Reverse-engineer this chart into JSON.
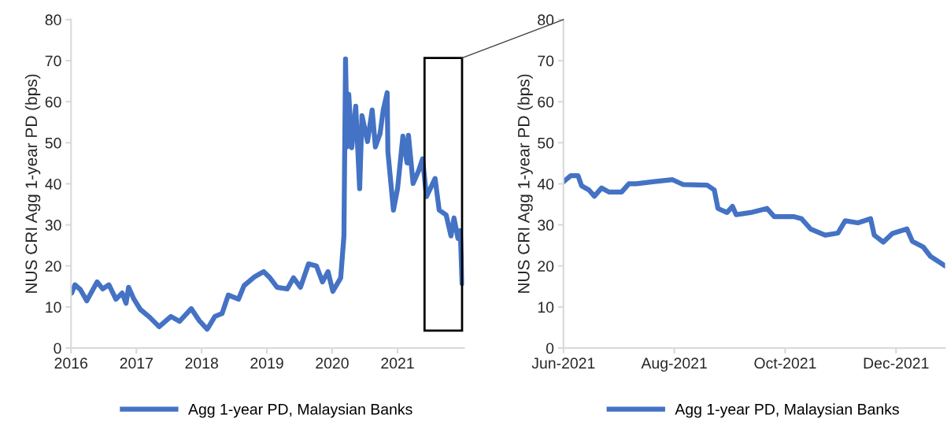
{
  "chart_data": [
    {
      "type": "line",
      "ylabel": "NUS CRI Agg 1-year PD (bps)",
      "xlim": [
        "2016-01-01",
        "2022-01-08"
      ],
      "ylim": [
        0,
        80
      ],
      "yticks": [
        0,
        10,
        20,
        30,
        40,
        50,
        60,
        70,
        80
      ],
      "xticks": [
        {
          "value": "2016-01-01",
          "label": "2016"
        },
        {
          "value": "2017-01-01",
          "label": "2017"
        },
        {
          "value": "2018-01-01",
          "label": "2018"
        },
        {
          "value": "2019-01-01",
          "label": "2019"
        },
        {
          "value": "2020-01-01",
          "label": "2020"
        },
        {
          "value": "2021-01-01",
          "label": "2021"
        }
      ],
      "grid": false,
      "legend": "bottom",
      "marker": "none",
      "line_style": "solid",
      "series": [
        {
          "name": "Agg 1-year PD, Malaysian Banks",
          "color": "#4472c4",
          "x": [
            "2016-01-05",
            "2016-01-23",
            "2016-02-23",
            "2016-03-29",
            "2016-05-26",
            "2016-06-26",
            "2016-07-31",
            "2016-09-08",
            "2016-10-13",
            "2016-11-04",
            "2016-11-18",
            "2016-12-18",
            "2017-01-23",
            "2017-03-16",
            "2017-05-08",
            "2017-07-13",
            "2017-08-30",
            "2017-11-04",
            "2017-12-18",
            "2018-02-01",
            "2018-03-16",
            "2018-04-25",
            "2018-05-30",
            "2018-07-26",
            "2018-08-26",
            "2018-10-22",
            "2018-12-14",
            "2019-01-18",
            "2019-02-27",
            "2019-04-25",
            "2019-05-30",
            "2019-07-08",
            "2019-08-22",
            "2019-10-05",
            "2019-11-08",
            "2019-12-09",
            "2020-01-05",
            "2020-02-18",
            "2020-03-07",
            "2020-03-16",
            "2020-03-25",
            "2020-04-03",
            "2020-04-20",
            "2020-05-12",
            "2020-06-03",
            "2020-06-16",
            "2020-07-17",
            "2020-08-12",
            "2020-08-30",
            "2020-09-25",
            "2020-10-13",
            "2020-11-04",
            "2020-11-08",
            "2020-12-09",
            "2021-01-01",
            "2021-01-31",
            "2021-02-23",
            "2021-03-03",
            "2021-03-29",
            "2021-04-29",
            "2021-05-21",
            "2021-06-12",
            "2021-07-30",
            "2021-08-22",
            "2021-09-30",
            "2021-10-27",
            "2021-11-13",
            "2021-12-05",
            "2021-12-18",
            "2021-12-28"
          ],
          "values": [
            13.4,
            15.4,
            14.2,
            11.5,
            16.1,
            14.4,
            15.4,
            11.9,
            13.4,
            10.9,
            14.8,
            11.9,
            9.4,
            7.5,
            5.2,
            7.7,
            6.5,
            9.6,
            6.7,
            4.6,
            7.7,
            8.4,
            12.9,
            11.9,
            15.2,
            17.3,
            18.6,
            17.1,
            14.8,
            14.4,
            17.1,
            14.8,
            20.5,
            20.0,
            16.1,
            18.6,
            13.8,
            17.1,
            27.3,
            70.4,
            49,
            61.8,
            48.8,
            58.9,
            38.8,
            56.6,
            50.3,
            58,
            49,
            52.2,
            58,
            62.2,
            47.8,
            33.6,
            38.8,
            51.6,
            45.1,
            51.8,
            40.1,
            43.2,
            46.1,
            36.9,
            41.3,
            33.6,
            32.4,
            27.3,
            31.7,
            26.7,
            28.6,
            15.7
          ]
        }
      ]
    },
    {
      "type": "line",
      "ylabel": "NUS CRI Agg 1-year PD (bps)",
      "xlim": [
        "2021-06-01",
        "2021-12-28"
      ],
      "ylim": [
        0,
        80
      ],
      "yticks": [
        0,
        10,
        20,
        30,
        40,
        50,
        60,
        70,
        80
      ],
      "xticks": [
        {
          "value": "2021-06-01",
          "label": "Jun-2021"
        },
        {
          "value": "2021-08-01",
          "label": "Aug-2021"
        },
        {
          "value": "2021-10-01",
          "label": "Oct-2021"
        },
        {
          "value": "2021-12-01",
          "label": "Dec-2021"
        }
      ],
      "grid": false,
      "legend": "bottom",
      "marker": "none",
      "line_style": "solid",
      "series": [
        {
          "name": "Agg 1-year PD, Malaysian Banks",
          "color": "#4472c4",
          "x": [
            "2021-06-01",
            "2021-06-05",
            "2021-06-09",
            "2021-06-11",
            "2021-06-15",
            "2021-06-18",
            "2021-06-22",
            "2021-06-26",
            "2021-07-03",
            "2021-07-07",
            "2021-07-11",
            "2021-07-20",
            "2021-07-31",
            "2021-08-06",
            "2021-08-19",
            "2021-08-23",
            "2021-08-25",
            "2021-08-30",
            "2021-09-02",
            "2021-09-04",
            "2021-09-12",
            "2021-09-21",
            "2021-09-25",
            "2021-10-06",
            "2021-10-10",
            "2021-10-15",
            "2021-10-23",
            "2021-10-30",
            "2021-11-03",
            "2021-11-10",
            "2021-11-17",
            "2021-11-19",
            "2021-11-24",
            "2021-11-29",
            "2021-12-07",
            "2021-12-10",
            "2021-12-16",
            "2021-12-20",
            "2021-12-28"
          ],
          "values": [
            40.5,
            42,
            42,
            39.5,
            38.5,
            37,
            39,
            38,
            38,
            40,
            40,
            40.5,
            41,
            39.8,
            39.7,
            38.5,
            34,
            33,
            34.5,
            32.5,
            33,
            34,
            32,
            32,
            31.5,
            29,
            27.5,
            28,
            31,
            30.5,
            31.5,
            27.5,
            25.8,
            27.9,
            29,
            26,
            24.6,
            22.3,
            20
          ]
        }
      ]
    }
  ]
}
